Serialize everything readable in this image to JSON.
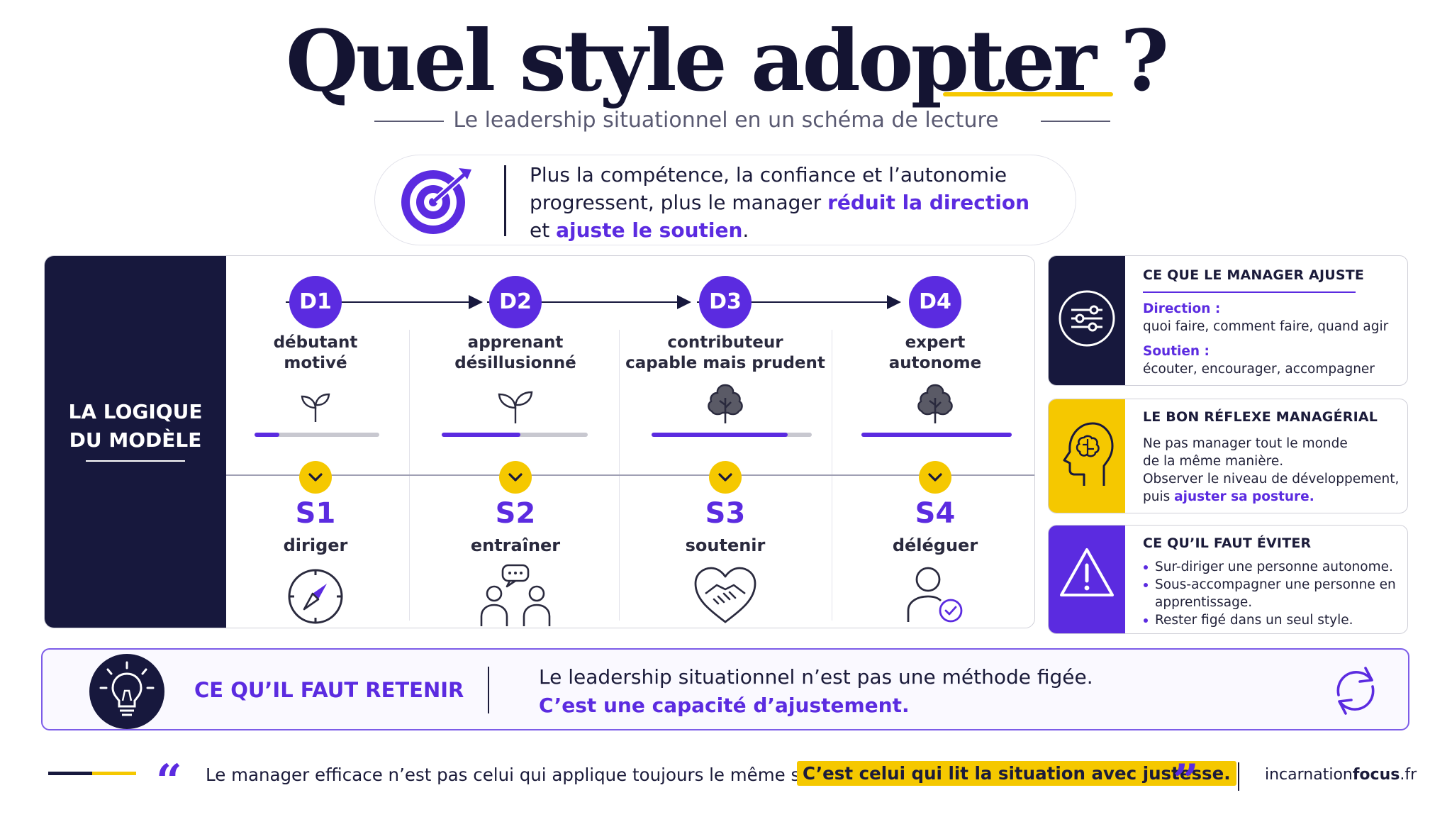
{
  "header": {
    "title": "Quel style adopter ?",
    "subtitle": "Le leadership situationnel en un schéma de lecture"
  },
  "intro": {
    "icon": "target-icon",
    "line1": "Plus la compétence, la confiance et l’autonomie",
    "line2_prefix": "progressent, plus le manager ",
    "line2_highlight": "réduit la direction",
    "line3_prefix": "et ",
    "line3_highlight": "ajuste le soutien",
    "line3_suffix": "."
  },
  "model": {
    "side_label_line1": "LA LOGIQUE",
    "side_label_line2": "DU MODÈLE",
    "levels": [
      {
        "code": "D1",
        "line1": "débutant",
        "line2": "motivé",
        "icon": "sprout-icon",
        "progress": 0.2,
        "style_code": "S1",
        "style_name": "diriger",
        "style_icon": "compass-icon"
      },
      {
        "code": "D2",
        "line1": "apprenant",
        "line2": "désillusionné",
        "icon": "sprout-icon",
        "progress": 0.54,
        "style_code": "S2",
        "style_name": "entraîner",
        "style_icon": "group-chat-icon"
      },
      {
        "code": "D3",
        "line1": "contributeur",
        "line2": "capable mais prudent",
        "icon": "tree-icon",
        "progress": 0.85,
        "style_code": "S3",
        "style_name": "soutenir",
        "style_icon": "handshake-heart-icon"
      },
      {
        "code": "D4",
        "line1": "expert",
        "line2": "autonome",
        "icon": "tree-icon",
        "progress": 1.0,
        "style_code": "S4",
        "style_name": "déléguer",
        "style_icon": "user-check-icon"
      }
    ]
  },
  "cards": {
    "adjust": {
      "title": "CE QUE LE MANAGER AJUSTE",
      "icon": "sliders-icon",
      "direction_label": "Direction :",
      "direction_text": "quoi faire, comment faire, quand agir",
      "support_label": "Soutien :",
      "support_text": "écouter, encourager, accompagner"
    },
    "reflex": {
      "title": "LE BON RÉFLEXE MANAGÉRIAL",
      "icon": "brain-head-icon",
      "line1": "Ne pas manager tout le monde",
      "line2": "de la même manière.",
      "line3": "Observer le niveau de développement,",
      "line4_prefix": "puis ",
      "line4_highlight": "ajuster sa posture",
      "line4_suffix": "."
    },
    "avoid": {
      "title": "CE QU’IL FAUT ÉVITER",
      "icon": "warning-icon",
      "bullets": [
        "Sur-diriger une personne autonome.",
        "Sous-accompagner une personne en apprentissage.",
        "Rester figé dans un seul style."
      ]
    }
  },
  "retain": {
    "icon": "lightbulb-icon",
    "title": "CE QU’IL FAUT RETENIR",
    "line1": "Le leadership situationnel n’est pas une méthode figée.",
    "line2": "C’est une capacité d’ajustement.",
    "cycle_icon": "refresh-icon"
  },
  "footer": {
    "open_quote": "“",
    "quote_text": "Le manager efficace n’est pas celui qui applique toujours le même style.",
    "quote_highlight": "C’est celui qui lit la situation avec justesse.",
    "close_quote": "”",
    "brand_light": "incarnation",
    "brand_bold": "focus",
    "brand_tld": ".fr"
  },
  "colors": {
    "navy": "#17183d",
    "purple": "#5b2be0",
    "yellow": "#f5c800",
    "grey": "#c8c8d0"
  }
}
